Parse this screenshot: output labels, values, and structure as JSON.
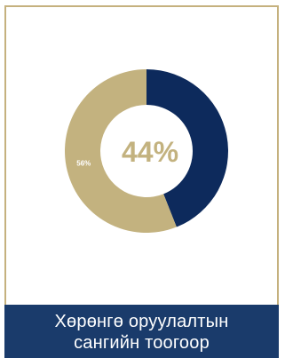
{
  "chart_data": {
    "type": "pie",
    "variant": "donut",
    "slices": [
      {
        "label": "44%",
        "value": 44,
        "color": "#0d2a5c"
      },
      {
        "label": "56%",
        "value": 56,
        "color": "#c3b27f"
      }
    ],
    "center_label": "44%",
    "center_label_color": "#c3b27f",
    "title": ""
  },
  "footer": {
    "line1": "Хөрөнгө оруулалтын",
    "line2": "сангийн тоогоор"
  },
  "colors": {
    "border": "#c5b17e",
    "footer_bg": "#1a3b6b"
  }
}
